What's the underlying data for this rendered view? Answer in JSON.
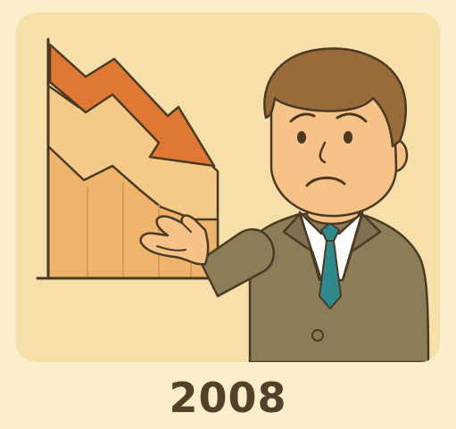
{
  "caption": {
    "year": "2008"
  },
  "colors": {
    "page_background": "#fbeecb",
    "panel_background": "#f7dfa9",
    "chart_fill_light": "#f5c987",
    "chart_fill_dark": "#eeb46c",
    "arrow": "#e07835",
    "suit": "#8c7d59",
    "skin": "#f6c287",
    "hair": "#9a6b3a",
    "tie": "#2f8a8e",
    "outline": "#4a3a24"
  },
  "illustration": {
    "subject": "businessman-icon",
    "chart": "falling-chart-icon",
    "arrow": "down-arrow-icon"
  }
}
